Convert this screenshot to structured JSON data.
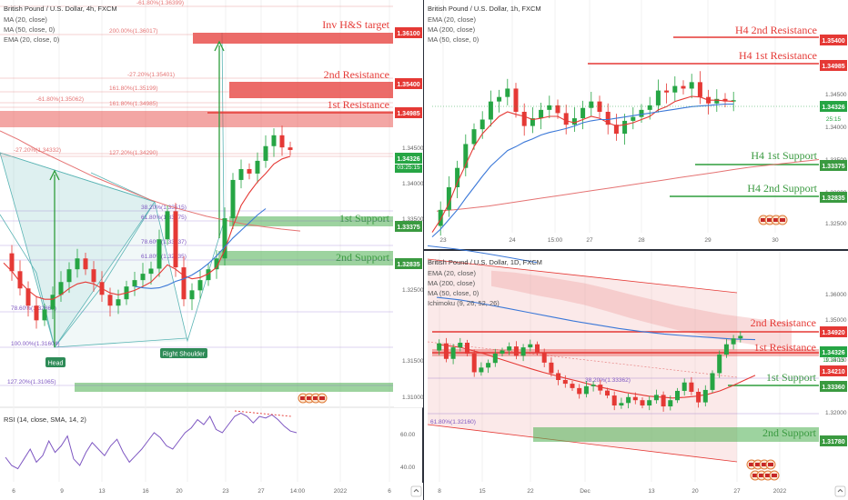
{
  "panels": {
    "h4": {
      "title": "British Pound / U.S. Dollar, 4h, FXCM",
      "indicators": [
        "MA (20, close)",
        "MA (50, close, 0)",
        "EMA (20, close, 0)"
      ],
      "currency": "USD",
      "yticks": [
        "1.34500",
        "1.34000",
        "1.33500",
        "1.32500",
        "1.31500",
        "1.31000"
      ],
      "xticks": [
        "6",
        "9",
        "13",
        "16",
        "20",
        "23",
        "27",
        "14:00",
        "2022",
        "6"
      ],
      "zones": [
        {
          "label": "Inv H&S target",
          "price": "1.36100"
        },
        {
          "label": "2nd Resistance",
          "price": "1.35400"
        },
        {
          "label": "1st Resistance",
          "price": "1.34985"
        },
        {
          "label": "1st Support",
          "price": "1.33375"
        },
        {
          "label": "2nd Support",
          "price": "1.32835"
        }
      ],
      "current_price": "1.34326",
      "countdown": "03:25:15",
      "fib_labels": [
        "-61.80%(1.36399)",
        "200.00%(1.36017)",
        "-27.20%(1.35401)",
        "161.80%(1.35199)",
        "-61.80%(1.35062)",
        "161.80%(1.34985)",
        "-27.20%(1.34332)",
        "127.20%(1.34290)",
        "38.20%(1.33515)",
        "61.80%(1.33375)",
        "78.60%(1.33037)",
        "61.80%(1.32835)",
        "78.60%(1.32867)",
        "100.00%(1.31604)",
        "127.20%(1.31065)"
      ],
      "pattern_labels": [
        "Head",
        "Right Shoulder"
      ],
      "rsi": {
        "title": "RSI (14, close, SMA, 14, 2)",
        "yticks": [
          "60.00",
          "40.00"
        ]
      }
    },
    "h1": {
      "title": "British Pound / U.S. Dollar, 1h, FXCM",
      "indicators": [
        "EMA (20, close)",
        "MA (200, close)",
        "MA (50, close, 0)"
      ],
      "currency": "USD",
      "yticks": [
        "1.34500",
        "1.34000",
        "1.33500",
        "1.33000",
        "1.32500"
      ],
      "xticks": [
        "23",
        "24",
        "15:00",
        "27",
        "28",
        "29",
        "30"
      ],
      "zones": [
        {
          "label": "H4 2nd Resistance",
          "price": "1.35400"
        },
        {
          "label": "H4 1st Resistance",
          "price": "1.34985"
        },
        {
          "label": "H4 1st Support",
          "price": "1.33375"
        },
        {
          "label": "H4 2nd Support",
          "price": "1.32835"
        }
      ],
      "current_price": "1.34326",
      "countdown": "25:15"
    },
    "d1": {
      "title": "British Pound / U.S. Dollar, 1D, FXCM",
      "indicators": [
        "EMA (20, close)",
        "MA (200, close)",
        "MA (50, close, 0)",
        "Ichimoku (9, 26, 52, 26)"
      ],
      "currency": "USD",
      "yticks": [
        "1.36000",
        "1.35000",
        "1.34000",
        "1.33000",
        "1.32000",
        "1.31000"
      ],
      "xticks": [
        "8",
        "15",
        "22",
        "Dec",
        "13",
        "20",
        "27",
        "2022"
      ],
      "zones": [
        {
          "label": "2nd Resistance",
          "price": "1.34920"
        },
        {
          "label": "1st Resistance",
          "price": "1.34210"
        },
        {
          "label": "1st Support",
          "price": "1.33360"
        },
        {
          "label": "2nd Support",
          "price": "1.31780"
        }
      ],
      "current_price": "1.34326",
      "countdown": "19:25:15",
      "fib_labels": [
        "38.20%(1.33362)",
        "61.80%(1.32160)"
      ]
    }
  },
  "chart_data": [
    {
      "type": "candlestick",
      "title": "British Pound / U.S. Dollar, 4h, FXCM",
      "ylim": [
        1.306,
        1.3668
      ],
      "close_path": [
        1.327,
        1.3242,
        1.3215,
        1.3188,
        1.3165,
        1.3182,
        1.3205,
        1.3225,
        1.3245,
        1.3262,
        1.3245,
        1.3225,
        1.3205,
        1.3188,
        1.3198,
        1.3218,
        1.3228,
        1.3238,
        1.3246,
        1.3292,
        1.3336,
        1.3248,
        1.3198,
        1.3212,
        1.3228,
        1.3245,
        1.3262,
        1.3325,
        1.3385,
        1.3402,
        1.3395,
        1.3415,
        1.3438,
        1.3455,
        1.3436,
        1.3432
      ],
      "ma_20": [
        1.3255,
        1.3242,
        1.3225,
        1.3212,
        1.3202,
        1.3198,
        1.3198,
        1.3205,
        1.3215,
        1.3222,
        1.3225,
        1.3222,
        1.3215,
        1.3208,
        1.3205,
        1.3208,
        1.3212,
        1.3218,
        1.3225,
        1.3238,
        1.3252,
        1.3245,
        1.3235,
        1.323,
        1.3232,
        1.3238,
        1.3248,
        1.3275,
        1.3312,
        1.3345,
        1.3365,
        1.3382,
        1.3395,
        1.341,
        1.3418,
        1.3422
      ],
      "ma_50": [
        null,
        null,
        null,
        null,
        null,
        null,
        null,
        null,
        null,
        null,
        null,
        null,
        null,
        null,
        null,
        null,
        1.3218,
        1.3216,
        1.3215,
        1.3216,
        1.322,
        1.3226,
        1.323,
        1.3236,
        1.3244,
        1.3254,
        1.3266,
        1.328,
        1.3294,
        1.3306,
        1.3318,
        1.333,
        1.334
      ],
      "ma_200": [
        1.3462,
        1.3448,
        1.3432,
        1.3418,
        1.3404,
        1.339,
        1.3378,
        1.3366,
        1.3354,
        1.3344,
        1.3336,
        1.3328,
        1.3322,
        1.3316,
        1.3312,
        1.3308,
        1.3305
      ],
      "rsi_ylim": [
        30,
        75
      ],
      "rsi": [
        45,
        40,
        38,
        44,
        50,
        42,
        46,
        55,
        48,
        52,
        58,
        44,
        40,
        48,
        54,
        50,
        46,
        52,
        56,
        48,
        42,
        46,
        50,
        55,
        60,
        57,
        52,
        50,
        55,
        60,
        63,
        68,
        65,
        70,
        62,
        60,
        65,
        70,
        72,
        70,
        66,
        70,
        69,
        71,
        68,
        64,
        61,
        60
      ]
    },
    {
      "type": "candlestick",
      "title": "British Pound / U.S. Dollar, 1h, FXCM",
      "ylim": [
        1.3225,
        1.3575
      ],
      "close_path": [
        1.3235,
        1.326,
        1.3295,
        1.3325,
        1.3362,
        1.3385,
        1.34,
        1.3428,
        1.3435,
        1.3448,
        1.3412,
        1.339,
        1.3402,
        1.3415,
        1.3422,
        1.341,
        1.3392,
        1.3402,
        1.3418,
        1.3428,
        1.3412,
        1.3392,
        1.3378,
        1.3398,
        1.3404,
        1.3415,
        1.3422,
        1.3445,
        1.3442,
        1.3452,
        1.3448,
        1.3458,
        1.3435,
        1.3425,
        1.3432,
        1.3428,
        1.343
      ],
      "ema_20": [
        1.3225,
        1.3245,
        1.327,
        1.3302,
        1.333,
        1.3358,
        1.3378,
        1.3392,
        1.3405,
        1.3412,
        1.3408,
        1.3405,
        1.34,
        1.3402,
        1.3405,
        1.3405,
        1.3398,
        1.3395,
        1.34,
        1.3405,
        1.3402,
        1.3395,
        1.339,
        1.3392,
        1.3395,
        1.34,
        1.3405,
        1.3415,
        1.342,
        1.3428,
        1.3432,
        1.3436,
        1.3435,
        1.343,
        1.343,
        1.3429,
        1.3428
      ],
      "ma_50": [
        1.3218,
        1.323,
        1.3245,
        1.326,
        1.3278,
        1.3295,
        1.3312,
        1.3328,
        1.334,
        1.3352,
        1.3358,
        1.3365,
        1.337,
        1.3376,
        1.338,
        1.3383,
        1.3386,
        1.339,
        1.3395,
        1.3398,
        1.34,
        1.34,
        1.3402,
        1.3404,
        1.3406,
        1.3408,
        1.341,
        1.3412,
        1.3414,
        1.3416,
        1.3418,
        1.342,
        1.3421,
        1.3422,
        1.3423,
        1.3424,
        1.3424
      ],
      "ma_200": [
        1.3258,
        1.326,
        1.3263,
        1.3266,
        1.327,
        1.3274,
        1.3278,
        1.3282,
        1.3286,
        1.329,
        1.3294,
        1.3298,
        1.3302,
        1.3306,
        1.331,
        1.3314,
        1.3318,
        1.3322,
        1.3326,
        1.3329,
        1.3332,
        1.3335,
        1.3338
      ],
      "rsi_ylim": null,
      "rsi": null
    },
    {
      "type": "candlestick",
      "title": "British Pound / U.S. Dollar, 1D, FXCM",
      "ylim": [
        1.3002,
        1.3665
      ],
      "close_path": [
        1.3385,
        1.3408,
        1.3358,
        1.3395,
        1.341,
        1.3375,
        1.3315,
        1.333,
        1.3345,
        1.3375,
        1.3385,
        1.3398,
        1.3368,
        1.3395,
        1.3405,
        1.3378,
        1.3346,
        1.3312,
        1.329,
        1.3278,
        1.3264,
        1.3245,
        1.327,
        1.3275,
        1.3256,
        1.324,
        1.3208,
        1.3216,
        1.3235,
        1.3225,
        1.3208,
        1.3225,
        1.3242,
        1.3205,
        1.3225,
        1.3255,
        1.3282,
        1.3252,
        1.3218,
        1.3258,
        1.3312,
        1.3372,
        1.3405,
        1.3424,
        1.3432
      ],
      "ema_20": [
        1.3405,
        1.34,
        1.3395,
        1.3385,
        1.3375,
        1.3362,
        1.335,
        1.3338,
        1.3326,
        1.3315,
        1.3305,
        1.3295,
        1.3286,
        1.3276,
        1.3266,
        1.3258,
        1.325,
        1.3244,
        1.3238,
        1.3235,
        1.3232,
        1.3234,
        1.3238,
        1.3244,
        1.3255,
        1.327,
        1.3288,
        1.3305
      ],
      "ma_50": [
        1.3556,
        1.3548,
        1.3536,
        1.3522,
        1.3508,
        1.3494,
        1.348,
        1.3468,
        1.3456,
        1.3446,
        1.3438,
        1.3432,
        1.3427,
        1.3422,
        1.342
      ],
      "ma_200": [
        1.3722,
        1.3717,
        1.3712,
        1.3706,
        1.3699,
        1.3692,
        1.3684,
        1.3676,
        1.3668
      ],
      "ichimoku_cloud_top": [
        1.3642,
        1.3636,
        1.3626,
        1.3614,
        1.3602,
        1.3585,
        1.3566,
        1.3548,
        1.353,
        1.3516,
        1.3502,
        1.3492,
        1.3482,
        1.3476
      ],
      "ichimoku_cloud_bottom": [
        1.3592,
        1.3578,
        1.3562,
        1.3548,
        1.3532,
        1.3512,
        1.349,
        1.347,
        1.3452,
        1.3436,
        1.342,
        1.3408,
        1.3396,
        1.3388
      ],
      "rsi_ylim": null,
      "rsi": null
    }
  ]
}
